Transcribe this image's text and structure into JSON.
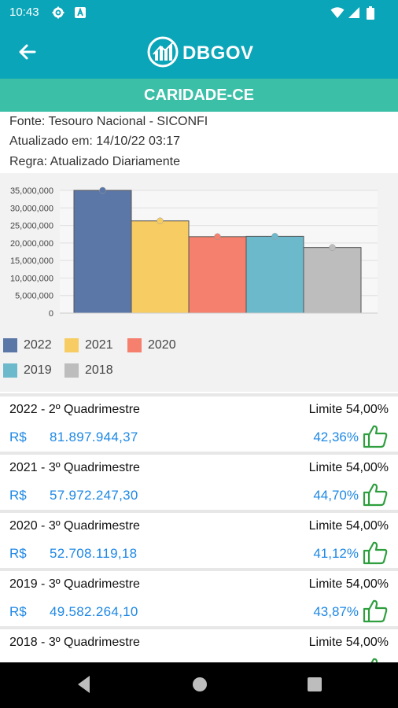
{
  "status": {
    "time": "10:43"
  },
  "header": {
    "brand": "DBGOV"
  },
  "city": {
    "name": "CARIDADE-CE"
  },
  "info": {
    "source": "Fonte: Tesouro Nacional - SICONFI",
    "updated": "Atualizado em: 14/10/22 03:17",
    "rule": "Regra: Atualizado Diariamente"
  },
  "chart_data": {
    "type": "bar",
    "categories": [
      "2022",
      "2021",
      "2020",
      "2019",
      "2018"
    ],
    "values": [
      35000000,
      26300000,
      21800000,
      21900000,
      18700000
    ],
    "colors": [
      "#5b77a8",
      "#f7cc63",
      "#f4806d",
      "#6db9cc",
      "#bdbdbd"
    ],
    "title": "",
    "xlabel": "",
    "ylabel": "",
    "ylim": [
      0,
      35000000
    ],
    "yticks": [
      "35,000,000",
      "30,000,000",
      "25,000,000",
      "20,000,000",
      "15,000,000",
      "10,000,000",
      "5,000,000",
      "0"
    ],
    "grid": true,
    "legend": [
      "2022",
      "2021",
      "2020",
      "2019",
      "2018"
    ],
    "legend_position": "bottom"
  },
  "rows": [
    {
      "period": "2022 - 2º Quadrimestre",
      "limit": "Limite 54,00%",
      "currency": "R$",
      "amount": "81.897.944,37",
      "percent": "42,36%",
      "icon": "thumbs-up-icon"
    },
    {
      "period": "2021 - 3º Quadrimestre",
      "limit": "Limite 54,00%",
      "currency": "R$",
      "amount": "57.972.247,30",
      "percent": "44,70%",
      "icon": "thumbs-up-icon"
    },
    {
      "period": "2020 - 3º Quadrimestre",
      "limit": "Limite 54,00%",
      "currency": "R$",
      "amount": "52.708.119,18",
      "percent": "41,12%",
      "icon": "thumbs-up-icon"
    },
    {
      "period": "2019 - 3º Quadrimestre",
      "limit": "Limite 54,00%",
      "currency": "R$",
      "amount": "49.582.264,10",
      "percent": "43,87%",
      "icon": "thumbs-up-icon"
    },
    {
      "period": "2018 - 3º Quadrimestre",
      "limit": "Limite 54,00%",
      "currency": "R$",
      "amount": "",
      "percent": "",
      "icon": "thumbs-up-icon"
    }
  ],
  "colors": {
    "primary": "#0aa5b8",
    "city_bar": "#3bbfa7",
    "value_blue": "#1e88e5",
    "thumb_green": "#2e9e3e"
  }
}
